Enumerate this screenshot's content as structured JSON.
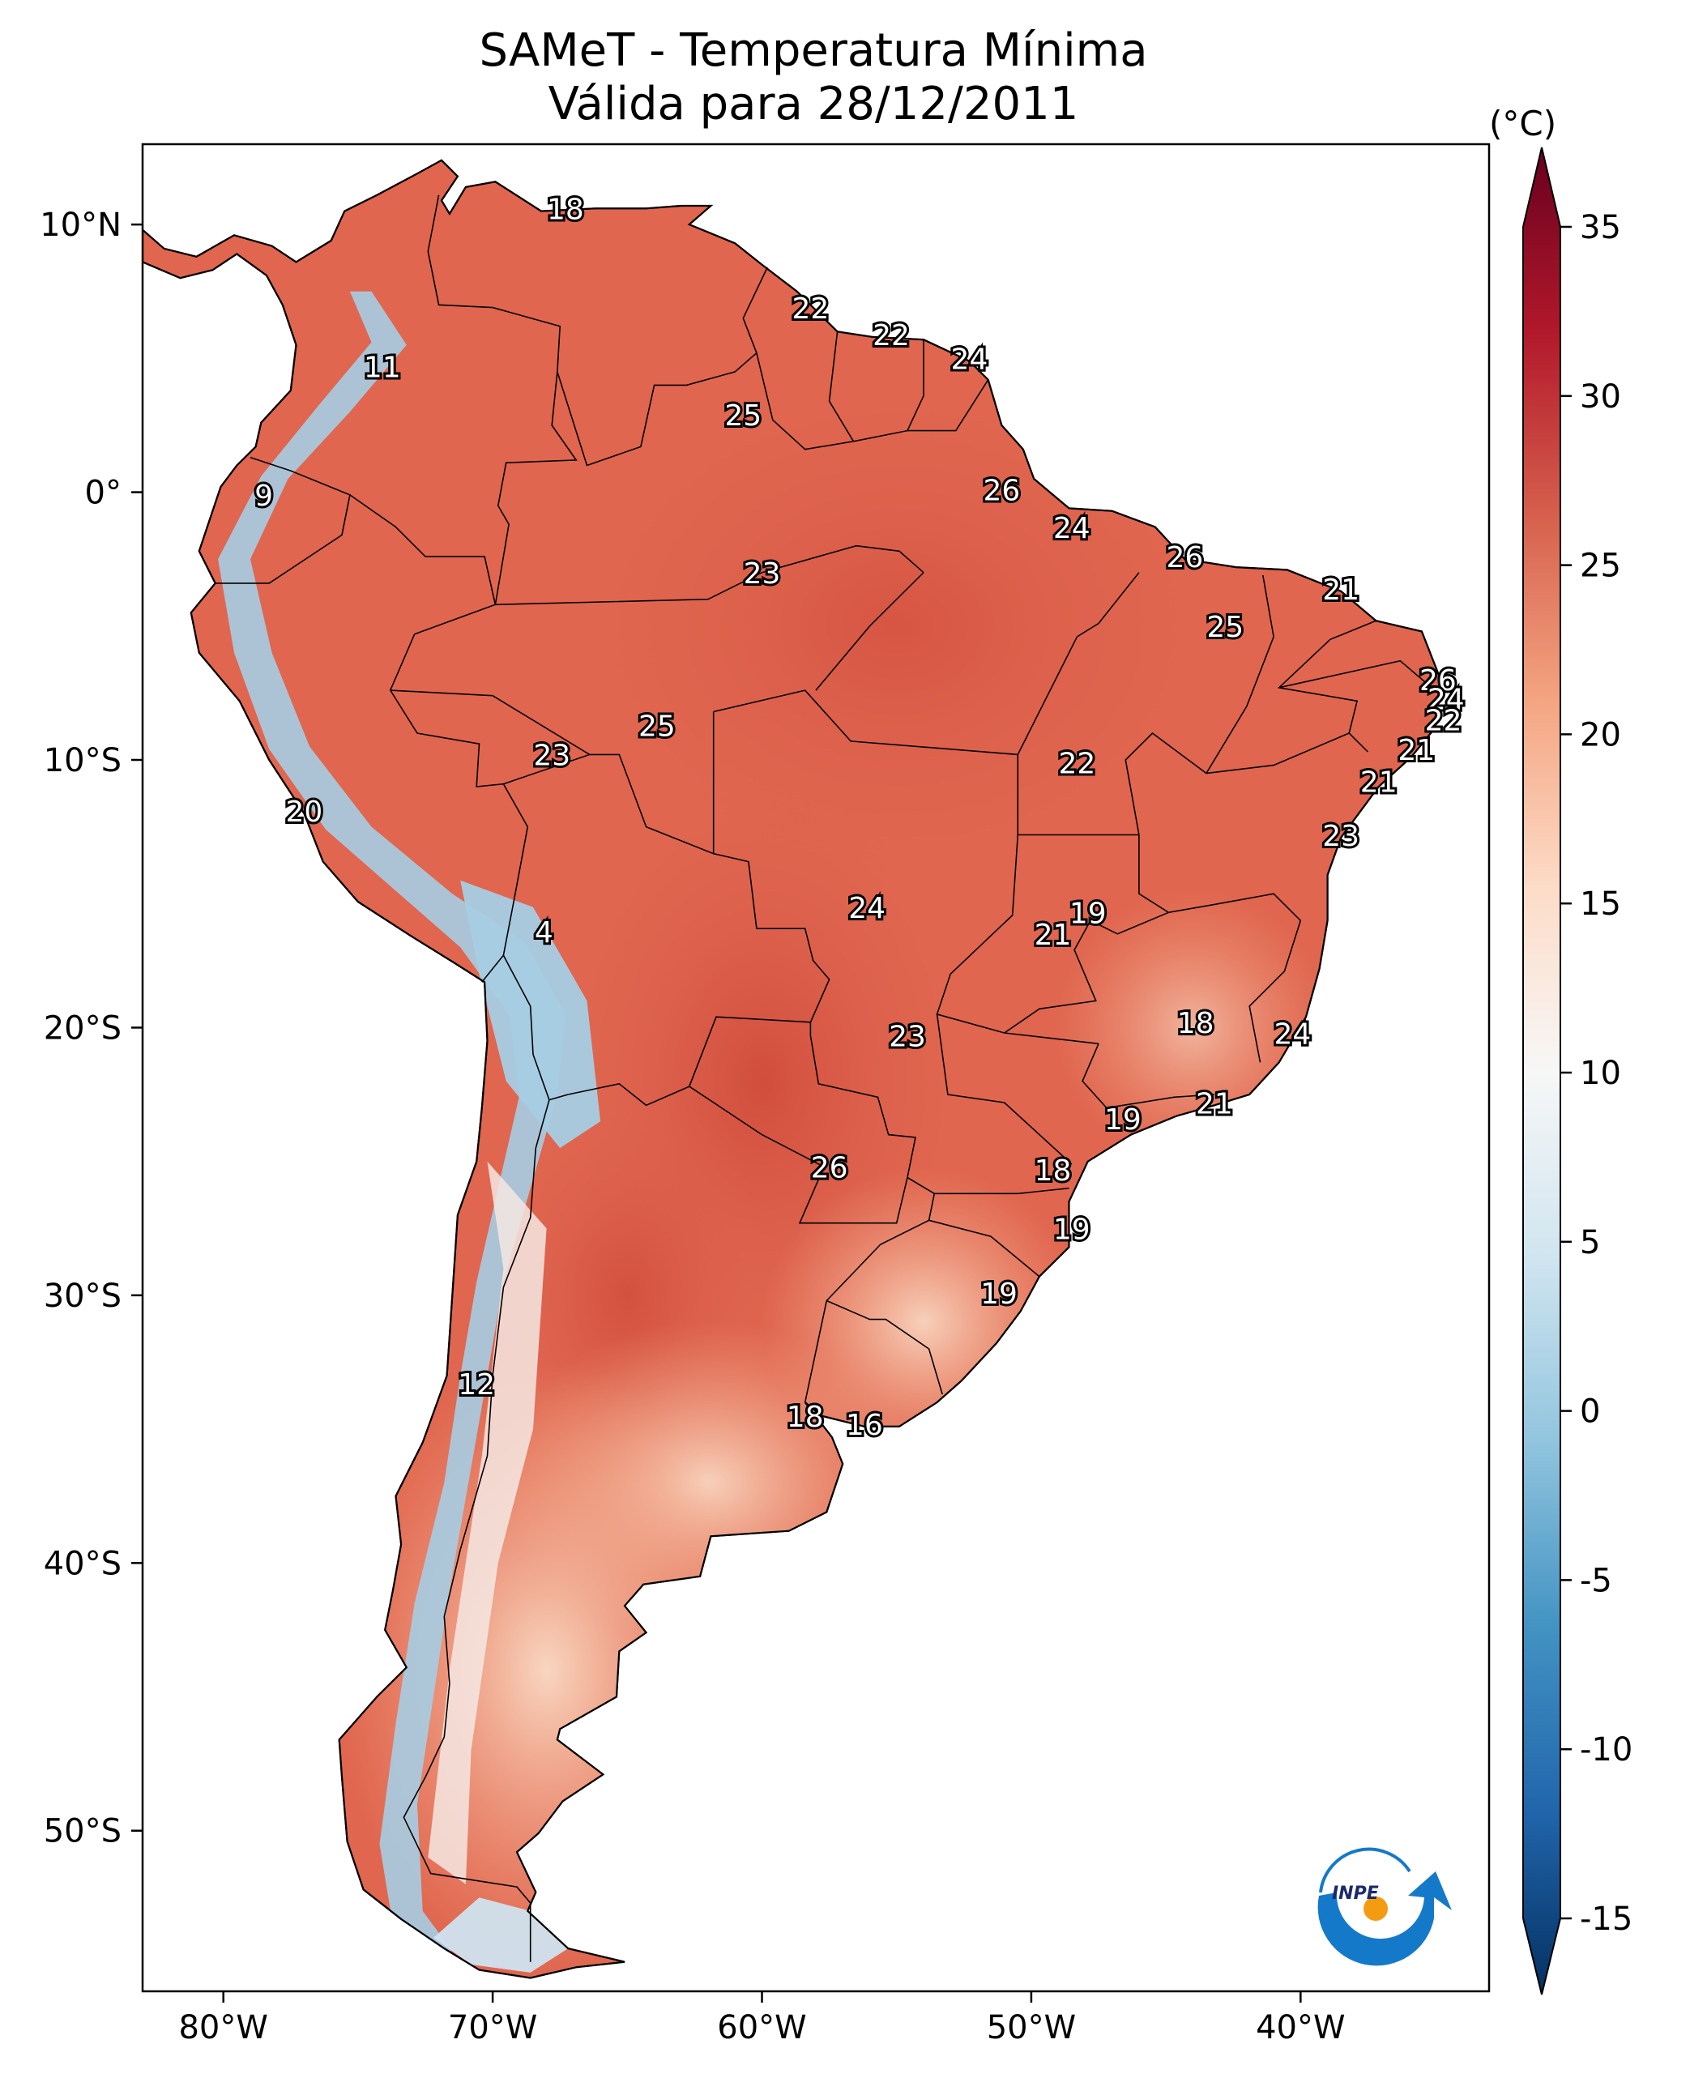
{
  "title": {
    "line1": "SAMeT - Temperatura Mínima",
    "line2": "Válida para 28/12/2011"
  },
  "map": {
    "lon_range": [
      -83,
      -33
    ],
    "lat_range": [
      -56,
      13
    ],
    "lon_ticks": [
      {
        "value": -80,
        "label": "80°W"
      },
      {
        "value": -70,
        "label": "70°W"
      },
      {
        "value": -60,
        "label": "60°W"
      },
      {
        "value": -50,
        "label": "50°W"
      },
      {
        "value": -40,
        "label": "40°W"
      }
    ],
    "lat_ticks": [
      {
        "value": 10,
        "label": "10°N"
      },
      {
        "value": 0,
        "label": "0°"
      },
      {
        "value": -10,
        "label": "10°S"
      },
      {
        "value": -20,
        "label": "20°S"
      },
      {
        "value": -30,
        "label": "30°S"
      },
      {
        "value": -40,
        "label": "40°S"
      },
      {
        "value": -50,
        "label": "50°S"
      }
    ],
    "ocean_color": "#ffffff",
    "land_warm_color": "#e0664f",
    "land_hot_color": "#d6503f",
    "land_cool_color": "#f6bfa4",
    "andes_cold_color": "#a6cde3"
  },
  "city_labels": [
    {
      "text": "18",
      "lon": -67.3,
      "lat": 10.5
    },
    {
      "text": "22",
      "lon": -58.2,
      "lat": 6.8
    },
    {
      "text": "22",
      "lon": -55.2,
      "lat": 5.8
    },
    {
      "text": "24",
      "lon": -52.3,
      "lat": 4.9
    },
    {
      "text": "11",
      "lon": -74.1,
      "lat": 4.6
    },
    {
      "text": "25",
      "lon": -60.7,
      "lat": 2.8
    },
    {
      "text": "26",
      "lon": -51.1,
      "lat": 0.0
    },
    {
      "text": "9",
      "lon": -78.5,
      "lat": -0.2
    },
    {
      "text": "24",
      "lon": -48.5,
      "lat": -1.4
    },
    {
      "text": "26",
      "lon": -44.3,
      "lat": -2.5
    },
    {
      "text": "23",
      "lon": -60.0,
      "lat": -3.1
    },
    {
      "text": "21",
      "lon": -38.5,
      "lat": -3.7
    },
    {
      "text": "25",
      "lon": -42.8,
      "lat": -5.1
    },
    {
      "text": "26",
      "lon": -34.9,
      "lat": -7.1
    },
    {
      "text": "24",
      "lon": -34.6,
      "lat": -7.8
    },
    {
      "text": "22",
      "lon": -34.7,
      "lat": -8.6
    },
    {
      "text": "25",
      "lon": -63.9,
      "lat": -8.8
    },
    {
      "text": "21",
      "lon": -35.7,
      "lat": -9.7
    },
    {
      "text": "23",
      "lon": -67.8,
      "lat": -9.9
    },
    {
      "text": "22",
      "lon": -48.3,
      "lat": -10.2
    },
    {
      "text": "21",
      "lon": -37.1,
      "lat": -10.9
    },
    {
      "text": "20",
      "lon": -77.0,
      "lat": -12.0
    },
    {
      "text": "23",
      "lon": -38.5,
      "lat": -12.9
    },
    {
      "text": "19",
      "lon": -47.9,
      "lat": -15.8
    },
    {
      "text": "24",
      "lon": -56.1,
      "lat": -15.6
    },
    {
      "text": "21",
      "lon": -49.2,
      "lat": -16.6
    },
    {
      "text": "4",
      "lon": -68.1,
      "lat": -16.5
    },
    {
      "text": "18",
      "lon": -43.9,
      "lat": -19.9
    },
    {
      "text": "24",
      "lon": -40.3,
      "lat": -20.3
    },
    {
      "text": "23",
      "lon": -54.6,
      "lat": -20.4
    },
    {
      "text": "21",
      "lon": -43.2,
      "lat": -22.9
    },
    {
      "text": "19",
      "lon": -46.6,
      "lat": -23.5
    },
    {
      "text": "26",
      "lon": -57.5,
      "lat": -25.3
    },
    {
      "text": "18",
      "lon": -49.2,
      "lat": -25.4
    },
    {
      "text": "19",
      "lon": -48.5,
      "lat": -27.6
    },
    {
      "text": "19",
      "lon": -51.2,
      "lat": -30.0
    },
    {
      "text": "12",
      "lon": -70.6,
      "lat": -33.4
    },
    {
      "text": "18",
      "lon": -58.4,
      "lat": -34.6
    },
    {
      "text": "16",
      "lon": -56.2,
      "lat": -34.9
    }
  ],
  "colorbar": {
    "unit": "(°C)",
    "min": -15,
    "max": 35,
    "ticks": [
      {
        "value": 35,
        "label": "35"
      },
      {
        "value": 30,
        "label": "30"
      },
      {
        "value": 25,
        "label": "25"
      },
      {
        "value": 20,
        "label": "20"
      },
      {
        "value": 15,
        "label": "15"
      },
      {
        "value": 10,
        "label": "10"
      },
      {
        "value": 5,
        "label": "5"
      },
      {
        "value": 0,
        "label": "0"
      },
      {
        "value": -5,
        "label": "-5"
      },
      {
        "value": -10,
        "label": "-10"
      },
      {
        "value": -15,
        "label": "-15"
      }
    ],
    "colors": [
      "#053061",
      "#2166ac",
      "#4393c3",
      "#92c5de",
      "#d1e5f0",
      "#f7f7f7",
      "#fddbc7",
      "#f4a582",
      "#d6604d",
      "#b2182b",
      "#67001f"
    ]
  },
  "logo": {
    "text": "INPE",
    "arc_color": "#1479c9",
    "dot_color": "#f39c12"
  }
}
